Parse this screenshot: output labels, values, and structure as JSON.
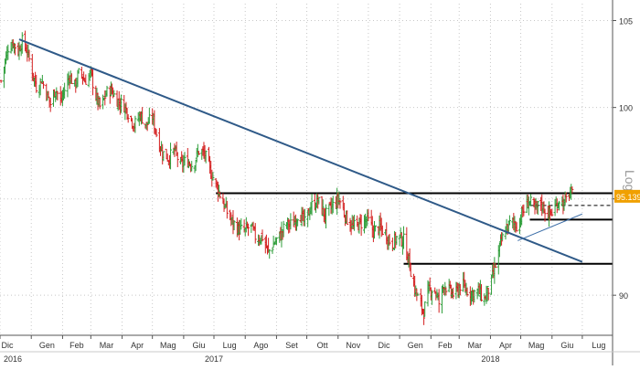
{
  "chart_data": {
    "type": "line",
    "subtype": "ohlc",
    "y_scale": "log",
    "y_scale_label": "Log",
    "ylim": [
      88,
      106
    ],
    "y_ticks": [
      {
        "value": 90,
        "label": "90"
      },
      {
        "value": 95,
        "label": ""
      },
      {
        "value": 100,
        "label": "100"
      },
      {
        "value": 105,
        "label": "105"
      }
    ],
    "xlim": [
      "2016-12-01",
      "2018-07-31"
    ],
    "x_ticks": [
      {
        "date": "2016-12-01",
        "label": "Dic"
      },
      {
        "date": "2017-01-01",
        "label": "Gen"
      },
      {
        "date": "2017-02-01",
        "label": "Feb"
      },
      {
        "date": "2017-03-01",
        "label": "Mar"
      },
      {
        "date": "2017-04-01",
        "label": "Apr"
      },
      {
        "date": "2017-05-01",
        "label": "Mag"
      },
      {
        "date": "2017-06-01",
        "label": "Giu"
      },
      {
        "date": "2017-07-01",
        "label": "Lug"
      },
      {
        "date": "2017-08-01",
        "label": "Ago"
      },
      {
        "date": "2017-09-01",
        "label": "Set"
      },
      {
        "date": "2017-10-01",
        "label": "Ott"
      },
      {
        "date": "2017-11-01",
        "label": "Nov"
      },
      {
        "date": "2017-12-01",
        "label": "Dic"
      },
      {
        "date": "2018-01-01",
        "label": "Gen"
      },
      {
        "date": "2018-02-01",
        "label": "Feb"
      },
      {
        "date": "2018-03-01",
        "label": "Mar"
      },
      {
        "date": "2018-04-01",
        "label": "Apr"
      },
      {
        "date": "2018-05-01",
        "label": "Mag"
      },
      {
        "date": "2018-06-01",
        "label": "Giu"
      },
      {
        "date": "2018-07-01",
        "label": "Lug"
      }
    ],
    "year_labels": [
      {
        "date": "2016-12-01",
        "label": "2016"
      },
      {
        "date": "2017-07-01",
        "label": "2017"
      },
      {
        "date": "2018-04-01",
        "label": "2018"
      }
    ],
    "last_price": {
      "value": 95.139,
      "label": "95.139",
      "color": "#f0a000"
    },
    "colors": {
      "up": "#2e9e3a",
      "down": "#d42020",
      "trendline": "#2f5a88",
      "support_trend": "#3c6ea8",
      "levels": "#000000",
      "grid": "#c8c8c8"
    },
    "grid": true,
    "series": [
      {
        "points": [
          [
            "2016-12-02",
            101.5
          ],
          [
            "2016-12-06",
            102.6
          ],
          [
            "2016-12-09",
            103.4
          ],
          [
            "2016-12-14",
            103.7
          ],
          [
            "2016-12-19",
            103.2
          ],
          [
            "2016-12-23",
            103.8
          ],
          [
            "2016-12-28",
            103.2
          ],
          [
            "2017-01-03",
            101.8
          ],
          [
            "2017-01-07",
            101.0
          ],
          [
            "2017-01-11",
            101.6
          ],
          [
            "2017-01-16",
            100.8
          ],
          [
            "2017-01-20",
            100.2
          ],
          [
            "2017-01-25",
            101.1
          ],
          [
            "2017-01-30",
            100.3
          ],
          [
            "2017-02-03",
            101.0
          ],
          [
            "2017-02-08",
            101.8
          ],
          [
            "2017-02-13",
            101.2
          ],
          [
            "2017-02-18",
            102.1
          ],
          [
            "2017-02-23",
            101.5
          ],
          [
            "2017-03-01",
            101.9
          ],
          [
            "2017-03-06",
            100.6
          ],
          [
            "2017-03-11",
            99.9
          ],
          [
            "2017-03-16",
            100.8
          ],
          [
            "2017-03-21",
            101.0
          ],
          [
            "2017-03-27",
            100.4
          ],
          [
            "2017-04-03",
            100.1
          ],
          [
            "2017-04-08",
            99.6
          ],
          [
            "2017-04-13",
            99.0
          ],
          [
            "2017-04-19",
            99.6
          ],
          [
            "2017-04-25",
            99.0
          ],
          [
            "2017-05-01",
            99.5
          ],
          [
            "2017-05-06",
            98.3
          ],
          [
            "2017-05-11",
            97.5
          ],
          [
            "2017-05-17",
            97.2
          ],
          [
            "2017-05-23",
            97.6
          ],
          [
            "2017-05-29",
            96.8
          ],
          [
            "2017-06-04",
            97.1
          ],
          [
            "2017-06-10",
            96.8
          ],
          [
            "2017-06-16",
            97.6
          ],
          [
            "2017-06-22",
            97.4
          ],
          [
            "2017-06-28",
            96.4
          ],
          [
            "2017-07-03",
            95.8
          ],
          [
            "2017-07-08",
            95.1
          ],
          [
            "2017-07-13",
            94.4
          ],
          [
            "2017-07-19",
            93.8
          ],
          [
            "2017-07-25",
            93.4
          ],
          [
            "2017-08-01",
            93.3
          ],
          [
            "2017-08-06",
            93.6
          ],
          [
            "2017-08-12",
            92.9
          ],
          [
            "2017-08-18",
            93.0
          ],
          [
            "2017-08-24",
            92.2
          ],
          [
            "2017-08-30",
            92.7
          ],
          [
            "2017-09-05",
            93.1
          ],
          [
            "2017-09-11",
            93.7
          ],
          [
            "2017-09-17",
            93.6
          ],
          [
            "2017-09-23",
            94.3
          ],
          [
            "2017-09-29",
            93.7
          ],
          [
            "2017-10-05",
            94.6
          ],
          [
            "2017-10-12",
            94.9
          ],
          [
            "2017-10-19",
            94.1
          ],
          [
            "2017-10-26",
            94.6
          ],
          [
            "2017-11-02",
            95.0
          ],
          [
            "2017-11-09",
            94.0
          ],
          [
            "2017-11-16",
            93.5
          ],
          [
            "2017-11-23",
            93.7
          ],
          [
            "2017-11-30",
            93.9
          ],
          [
            "2017-12-06",
            93.3
          ],
          [
            "2017-12-12",
            93.5
          ],
          [
            "2017-12-18",
            93.2
          ],
          [
            "2017-12-24",
            92.6
          ],
          [
            "2017-12-30",
            93.0
          ],
          [
            "2018-01-05",
            92.8
          ],
          [
            "2018-01-10",
            91.8
          ],
          [
            "2018-01-15",
            90.5
          ],
          [
            "2018-01-20",
            89.7
          ],
          [
            "2018-01-25",
            89.2
          ],
          [
            "2018-01-30",
            90.2
          ],
          [
            "2018-02-04",
            90.4
          ],
          [
            "2018-02-09",
            89.6
          ],
          [
            "2018-02-14",
            90.6
          ],
          [
            "2018-02-19",
            90.2
          ],
          [
            "2018-02-25",
            90.0
          ],
          [
            "2018-03-02",
            90.5
          ],
          [
            "2018-03-08",
            90.3
          ],
          [
            "2018-03-14",
            90.1
          ],
          [
            "2018-03-20",
            90.2
          ],
          [
            "2018-03-26",
            89.8
          ],
          [
            "2018-04-01",
            90.5
          ],
          [
            "2018-04-06",
            91.5
          ],
          [
            "2018-04-11",
            92.6
          ],
          [
            "2018-04-16",
            93.4
          ],
          [
            "2018-04-22",
            93.8
          ],
          [
            "2018-04-28",
            93.6
          ],
          [
            "2018-05-03",
            94.3
          ],
          [
            "2018-05-09",
            94.9
          ],
          [
            "2018-05-15",
            94.4
          ],
          [
            "2018-05-21",
            94.8
          ],
          [
            "2018-05-27",
            94.2
          ],
          [
            "2018-06-02",
            94.3
          ],
          [
            "2018-06-08",
            95.0
          ],
          [
            "2018-06-13",
            94.7
          ],
          [
            "2018-06-18",
            95.3
          ],
          [
            "2018-06-22",
            95.14
          ]
        ]
      }
    ],
    "annotations": [
      {
        "kind": "trendline",
        "from": [
          "2016-12-20",
          103.9
        ],
        "to": [
          "2018-07-01",
          91.7
        ]
      },
      {
        "kind": "hline",
        "from": [
          "2017-07-03",
          95.3
        ],
        "to": [
          "2018-07-31",
          95.3
        ]
      },
      {
        "kind": "hline",
        "from": [
          "2018-01-05",
          91.6
        ],
        "to": [
          "2018-07-31",
          91.6
        ]
      },
      {
        "kind": "hline",
        "from": [
          "2018-05-10",
          93.9
        ],
        "to": [
          "2018-07-31",
          93.9
        ]
      },
      {
        "kind": "hline",
        "from": [
          "2018-05-10",
          94.65
        ],
        "to": [
          "2018-07-31",
          94.65
        ],
        "dashed": true
      },
      {
        "kind": "trendline",
        "from": [
          "2018-04-28",
          92.8
        ],
        "to": [
          "2018-07-01",
          94.2
        ]
      }
    ]
  }
}
